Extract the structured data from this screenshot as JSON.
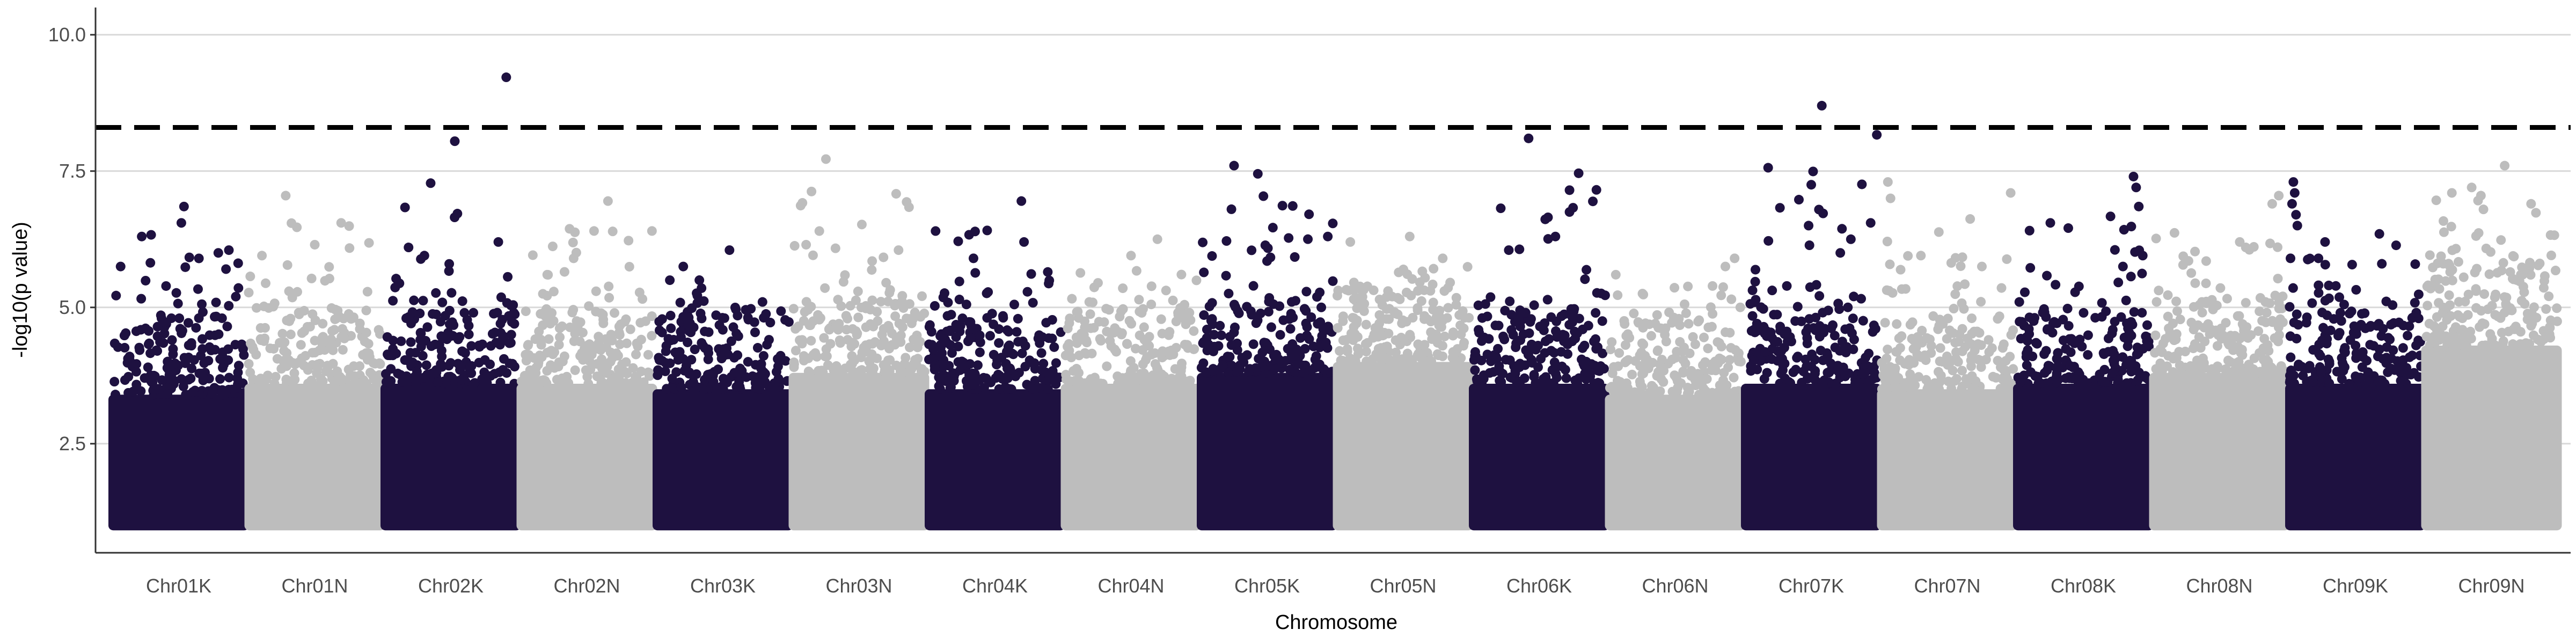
{
  "chart_data": {
    "type": "scatter",
    "subtype": "manhattan",
    "title": "",
    "xlabel": "Chromosome",
    "ylabel": "-log10(p value)",
    "ylim": [
      0.5,
      10.5
    ],
    "yticks": [
      2.5,
      5.0,
      7.5,
      10.0
    ],
    "ytick_labels": [
      "2.5",
      "5.0",
      "7.5",
      "10.0"
    ],
    "grid": "horizontal major lines",
    "legend": "none",
    "threshold": {
      "value": 8.3,
      "style": "dashed",
      "color": "#000000"
    },
    "min_plotted_value": 1.0,
    "colors": {
      "odd": "#1e1140",
      "even": "#bdbdbd"
    },
    "categories": [
      "Chr01K",
      "Chr01N",
      "Chr02K",
      "Chr02N",
      "Chr03K",
      "Chr03N",
      "Chr04K",
      "Chr04N",
      "Chr05K",
      "Chr05N",
      "Chr06K",
      "Chr06N",
      "Chr07K",
      "Chr07N",
      "Chr08K",
      "Chr08N",
      "Chr09K",
      "Chr09N"
    ],
    "chromosomes": [
      {
        "name": "Chr01K",
        "color": "#1e1140",
        "dense_top": 3.4,
        "cloud_top": 4.8,
        "peak": 6.85,
        "outliers": [
          [
            0.54,
            6.85
          ],
          [
            0.52,
            6.55
          ],
          [
            0.88,
            6.05
          ],
          [
            0.8,
            6.0
          ],
          [
            0.06,
            5.75
          ],
          [
            0.22,
            6.3
          ]
        ]
      },
      {
        "name": "Chr01N",
        "color": "#bdbdbd",
        "dense_top": 3.6,
        "cloud_top": 4.9,
        "peak": 7.05,
        "outliers": [
          [
            0.28,
            7.05
          ],
          [
            0.7,
            6.55
          ],
          [
            0.1,
            5.95
          ],
          [
            0.5,
            6.15
          ]
        ]
      },
      {
        "name": "Chr02K",
        "color": "#1e1140",
        "dense_top": 3.6,
        "cloud_top": 4.9,
        "peak": 9.22,
        "outliers": [
          [
            0.92,
            9.22
          ],
          [
            0.55,
            6.72
          ],
          [
            0.86,
            6.2
          ],
          [
            0.18,
            6.1
          ],
          [
            0.3,
            5.95
          ]
        ]
      },
      {
        "name": "Chr02N",
        "color": "#bdbdbd",
        "dense_top": 3.6,
        "cloud_top": 4.9,
        "peak": 6.95,
        "outliers": [
          [
            0.66,
            6.95
          ],
          [
            0.4,
            5.9
          ],
          [
            0.2,
            5.6
          ]
        ]
      },
      {
        "name": "Chr03K",
        "color": "#1e1140",
        "dense_top": 3.5,
        "cloud_top": 4.8,
        "peak": 6.05,
        "outliers": [
          [
            0.55,
            6.05
          ],
          [
            0.2,
            5.75
          ],
          [
            0.8,
            5.1
          ]
        ]
      },
      {
        "name": "Chr03N",
        "color": "#bdbdbd",
        "dense_top": 3.8,
        "cloud_top": 5.1,
        "peak": 7.72,
        "outliers": [
          [
            0.25,
            7.72
          ],
          [
            0.2,
            6.4
          ],
          [
            0.8,
            6.05
          ],
          [
            0.1,
            6.15
          ],
          [
            0.6,
            5.85
          ]
        ]
      },
      {
        "name": "Chr04K",
        "color": "#1e1140",
        "dense_top": 3.5,
        "cloud_top": 4.8,
        "peak": 6.95,
        "outliers": [
          [
            0.7,
            6.95
          ],
          [
            0.05,
            6.4
          ],
          [
            0.72,
            6.2
          ],
          [
            0.9,
            5.65
          ]
        ]
      },
      {
        "name": "Chr04N",
        "color": "#bdbdbd",
        "dense_top": 3.6,
        "cloud_top": 4.9,
        "peak": 6.25,
        "outliers": [
          [
            0.7,
            6.25
          ],
          [
            0.5,
            5.95
          ],
          [
            0.25,
            5.45
          ]
        ]
      },
      {
        "name": "Chr05K",
        "color": "#1e1140",
        "dense_top": 3.8,
        "cloud_top": 5.1,
        "peak": 7.6,
        "outliers": [
          [
            0.25,
            7.6
          ],
          [
            0.43,
            7.45
          ],
          [
            0.23,
            6.8
          ],
          [
            0.96,
            6.3
          ],
          [
            0.5,
            5.85
          ]
        ]
      },
      {
        "name": "Chr05N",
        "color": "#bdbdbd",
        "dense_top": 4.0,
        "cloud_top": 5.3,
        "peak": 6.3,
        "outliers": [
          [
            0.55,
            6.3
          ],
          [
            0.1,
            6.2
          ],
          [
            0.8,
            5.9
          ]
        ]
      },
      {
        "name": "Chr06K",
        "color": "#1e1140",
        "dense_top": 3.6,
        "cloud_top": 4.9,
        "peak": 8.1,
        "outliers": [
          [
            0.42,
            8.1
          ],
          [
            0.73,
            7.15
          ],
          [
            0.73,
            6.75
          ],
          [
            0.27,
            6.05
          ]
        ]
      },
      {
        "name": "Chr06N",
        "color": "#bdbdbd",
        "dense_top": 3.4,
        "cloud_top": 4.7,
        "peak": 5.9,
        "outliers": [
          [
            0.95,
            5.9
          ],
          [
            0.88,
            5.75
          ],
          [
            0.05,
            5.6
          ]
        ]
      },
      {
        "name": "Chr07K",
        "color": "#1e1140",
        "dense_top": 3.6,
        "cloud_top": 5.0,
        "peak": 8.7,
        "outliers": [
          [
            0.58,
            8.7
          ],
          [
            0.5,
            7.25
          ],
          [
            0.95,
            6.55
          ],
          [
            0.48,
            6.5
          ],
          [
            0.72,
            6.0
          ],
          [
            0.8,
            6.25
          ]
        ]
      },
      {
        "name": "Chr07N",
        "color": "#bdbdbd",
        "dense_top": 3.5,
        "cloud_top": 4.8,
        "peak": 7.3,
        "outliers": [
          [
            0.05,
            7.3
          ],
          [
            0.07,
            7.0
          ],
          [
            0.98,
            7.1
          ],
          [
            0.3,
            5.95
          ]
        ]
      },
      {
        "name": "Chr08K",
        "color": "#1e1140",
        "dense_top": 3.6,
        "cloud_top": 4.9,
        "peak": 7.4,
        "outliers": [
          [
            0.88,
            7.4
          ],
          [
            0.9,
            7.2
          ],
          [
            0.92,
            6.85
          ],
          [
            0.25,
            6.55
          ],
          [
            0.95,
            5.95
          ],
          [
            0.8,
            5.75
          ]
        ]
      },
      {
        "name": "Chr08N",
        "color": "#bdbdbd",
        "dense_top": 3.8,
        "cloud_top": 5.1,
        "peak": 7.05,
        "outliers": [
          [
            0.95,
            7.05
          ],
          [
            0.9,
            6.9
          ],
          [
            0.7,
            6.1
          ],
          [
            0.4,
            5.85
          ]
        ]
      },
      {
        "name": "Chr09K",
        "color": "#1e1140",
        "dense_top": 3.6,
        "cloud_top": 4.9,
        "peak": 7.3,
        "outliers": [
          [
            0.03,
            7.3
          ],
          [
            0.04,
            7.1
          ],
          [
            0.02,
            6.9
          ],
          [
            0.05,
            6.7
          ],
          [
            0.06,
            6.5
          ],
          [
            0.27,
            6.2
          ],
          [
            0.22,
            5.9
          ],
          [
            0.7,
            5.8
          ]
        ]
      },
      {
        "name": "Chr09N",
        "color": "#bdbdbd",
        "dense_top": 4.3,
        "cloud_top": 5.8,
        "peak": 7.6,
        "outliers": [
          [
            0.6,
            7.6
          ],
          [
            0.35,
            7.2
          ],
          [
            0.42,
            7.05
          ],
          [
            0.2,
            7.1
          ],
          [
            0.8,
            6.9
          ]
        ]
      }
    ]
  }
}
